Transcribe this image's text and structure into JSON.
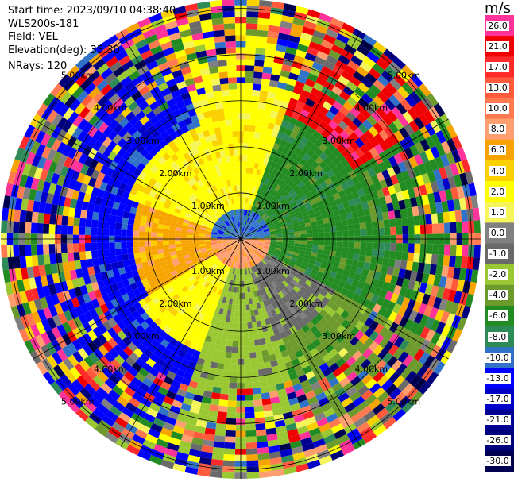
{
  "header": {
    "start_time": "Start time: 2023/09/10 04:38:40",
    "instrument": "WLS200s-181",
    "field": "Field: VEL",
    "elevation": "Elevation(deg): 35.30",
    "nrays": "NRays: 120"
  },
  "colorbar": {
    "unit": "m/s",
    "levels": [
      {
        "label": "26.0",
        "color": "#ff3399"
      },
      {
        "label": "21.0",
        "color": "#f00000"
      },
      {
        "label": "17.0",
        "color": "#ff2a2a"
      },
      {
        "label": "13.0",
        "color": "#ff5a3c"
      },
      {
        "label": "10.0",
        "color": "#ff7a50"
      },
      {
        "label": "8.0",
        "color": "#ff9e6e"
      },
      {
        "label": "6.0",
        "color": "#f7a400"
      },
      {
        "label": "4.0",
        "color": "#fbd000"
      },
      {
        "label": "2.0",
        "color": "#ffff00"
      },
      {
        "label": "1.0",
        "color": "#f5f55a"
      },
      {
        "label": "0.0",
        "color": "#808080"
      },
      {
        "label": "-1.0",
        "color": "#6a6a6a"
      },
      {
        "label": "-2.0",
        "color": "#9ac832"
      },
      {
        "label": "-4.0",
        "color": "#6c9a2c"
      },
      {
        "label": "-6.0",
        "color": "#228b22"
      },
      {
        "label": "-8.0",
        "color": "#2e8b57"
      },
      {
        "label": "-10.0",
        "color": "#2f72c8"
      },
      {
        "label": "-13.0",
        "color": "#0000ff"
      },
      {
        "label": "-17.0",
        "color": "#0000c8"
      },
      {
        "label": "-21.0",
        "color": "#000090"
      },
      {
        "label": "-26.0",
        "color": "#00007a"
      },
      {
        "label": "-30.0",
        "color": "#000050"
      }
    ]
  },
  "chart_data": {
    "type": "heatmap",
    "subtype": "ppi-polar",
    "field": "VEL",
    "n_rays": 120,
    "range_rings_km": [
      1.0,
      2.0,
      3.0,
      4.0,
      5.0
    ],
    "ring_labels": [
      "1.00km",
      "2.00km",
      "3.00km",
      "4.00km",
      "5.00km"
    ],
    "radial_lines": "every 30 deg",
    "colorbar_range": [
      -30.0,
      26.0
    ],
    "pattern_by_sector": [
      {
        "sector": "north",
        "dominant": "yellow (+2 to +4 m/s)",
        "far_range": "mixed noise"
      },
      {
        "sector": "northeast",
        "dominant": "green (-4 to -6 m/s)",
        "far_range": "red (+13 to +21 m/s)"
      },
      {
        "sector": "east",
        "dominant": "green (-4 to -6 m/s)",
        "far_range": "mixed noise"
      },
      {
        "sector": "southeast",
        "dominant": "olive/gray (-1 to -4 m/s)",
        "far_range": "mixed noise"
      },
      {
        "sector": "south",
        "dominant": "olive (-2 to -4 m/s)",
        "far_range": "green mixed"
      },
      {
        "sector": "southwest",
        "dominant": "yellow/orange (+2 to +6 m/s)",
        "far_range": "blue (-13 to -17 m/s)"
      },
      {
        "sector": "west",
        "dominant": "orange (+4 to +8 m/s)",
        "far_range": "blue (-13 to -17 m/s)"
      },
      {
        "sector": "northwest",
        "dominant": "yellow (+2 m/s)",
        "far_range": "blue (-13 to -17 m/s)"
      }
    ],
    "center_cluster": "blue (-10 to -13 m/s) north of origin, salmon (+8 to +10 m/s) south of origin"
  }
}
